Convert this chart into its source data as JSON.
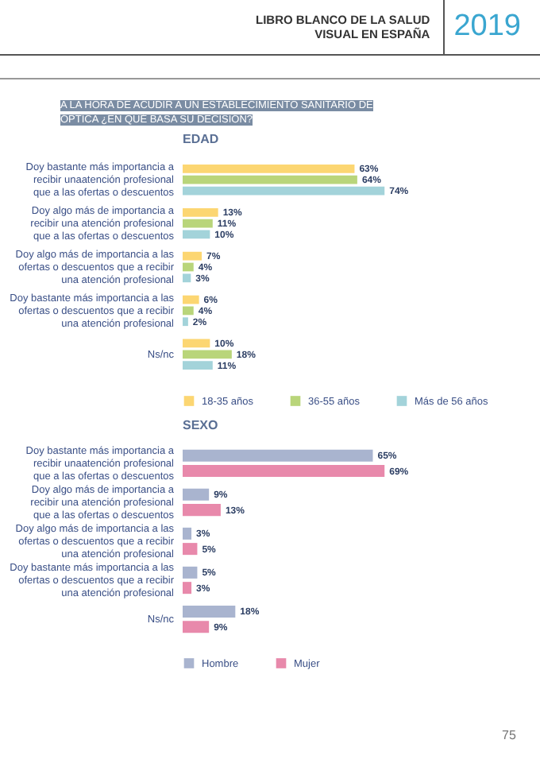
{
  "chart_data": [
    {
      "type": "bar",
      "orientation": "horizontal",
      "title": "EDAD",
      "annotations": [
        "LIBRO BLANCO DE LA SALUD VISUAL EN ESPAÑA",
        "2019",
        "A LA HORA DE ACUDIR A UN ESTABLECIMIENTO SANITARIO DE ÓPTICA ¿EN QUÉ BASA SU DECISIÓN?"
      ],
      "categories": [
        "Doy bastante más importancia a recibir unaatención profesional que a las ofertas o descuentos",
        "Doy algo más de importancia a recibir una atención profesional que a las ofertas o descuentos",
        "Doy algo más de importancia a las ofertas o descuentos que a recibir una atención profesional",
        "Doy bastante más importancia a las ofertas o descuentos que a recibir una atención profesional",
        "Ns/nc"
      ],
      "series": [
        {
          "name": "18-35 años",
          "color": "#fcd672",
          "values": [
            63,
            13,
            7,
            6,
            10
          ],
          "value_labels": [
            "63%",
            "13%",
            "7%",
            "6%",
            "10%"
          ]
        },
        {
          "name": "36-55 años",
          "color": "#b9d57a",
          "values": [
            64,
            11,
            4,
            4,
            18
          ],
          "value_labels": [
            "64%",
            "11%",
            "4%",
            "4%",
            "18%"
          ]
        },
        {
          "name": "Más de 56 años",
          "color": "#a3d3da",
          "values": [
            74,
            10,
            3,
            2,
            11
          ],
          "value_labels": [
            "74%",
            "10%",
            "3%",
            "2%",
            "11%"
          ]
        }
      ],
      "legend": "bottom",
      "tick_labels": "y"
    },
    {
      "type": "bar",
      "orientation": "horizontal",
      "title": "SEXO",
      "annotations": [
        "75"
      ],
      "categories": [
        "Doy bastante más importancia a recibir unaatención profesional que a las ofertas o descuentos",
        "Doy algo más de importancia a recibir una atención profesional que a las ofertas o descuentos",
        "Doy algo más de importancia a las ofertas o descuentos que a recibir una atención profesional",
        "Doy bastante más importancia a las ofertas o descuentos que a recibir una atención profesional",
        "Ns/nc"
      ],
      "series": [
        {
          "name": "Hombre",
          "color": "#a9b4cf",
          "values": [
            65,
            9,
            3,
            5,
            18
          ],
          "value_labels": [
            "65%",
            "9%",
            "3%",
            "5%",
            "18%"
          ]
        },
        {
          "name": "Mujer",
          "color": "#e889ab",
          "values": [
            69,
            13,
            5,
            3,
            9
          ],
          "value_labels": [
            "69%",
            "13%",
            "5%",
            "3%",
            "9%"
          ]
        }
      ],
      "legend": "bottom",
      "tick_labels": "y"
    }
  ]
}
